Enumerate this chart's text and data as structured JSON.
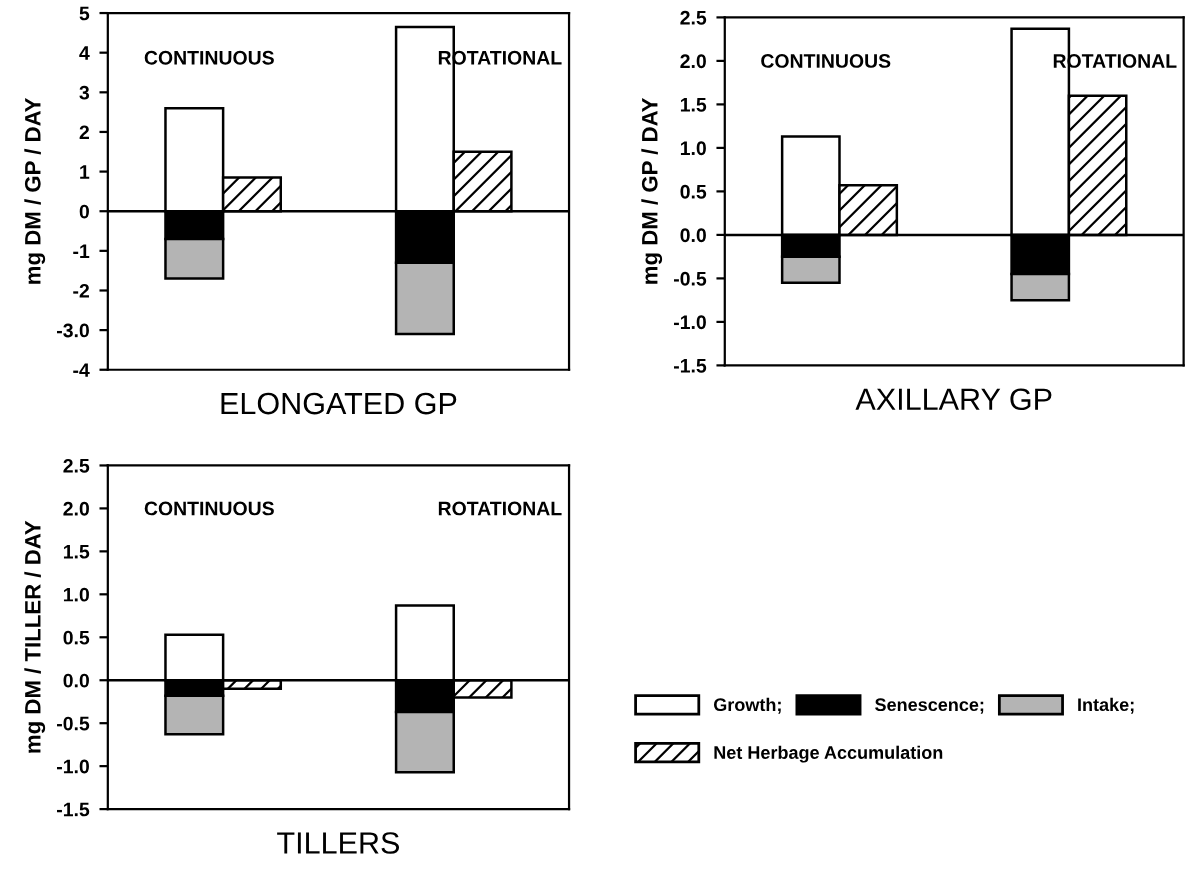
{
  "chart_data": [
    {
      "type": "bar",
      "xlabel": "ELONGATED GP",
      "ylabel": "mg DM / GP / DAY",
      "annotations": [
        "CONTINUOUS",
        "ROTATIONAL"
      ],
      "categories": [
        null,
        null,
        null,
        null,
        null,
        null,
        null,
        null
      ],
      "stacked": true,
      "tick_labels": "y",
      "grid": false,
      "ylim": [
        -4,
        5
      ],
      "yticks": [
        -4,
        {
          "value": -3,
          "label": "-3.0"
        },
        -2,
        -1,
        0,
        1,
        2,
        3,
        4,
        5
      ],
      "ref_lines": [
        {
          "axis": "y",
          "value": 0,
          "color": "#000000"
        }
      ],
      "series": [
        {
          "color": "#ffffff",
          "values": [
            null,
            2.6,
            null,
            null,
            null,
            4.65,
            null,
            null
          ]
        },
        {
          "color": "#000000",
          "values": [
            null,
            -0.7,
            null,
            null,
            null,
            -1.3,
            null,
            null
          ]
        },
        {
          "color": "#b4b4b4",
          "values": [
            null,
            -1.0,
            null,
            null,
            null,
            -1.8,
            null,
            null
          ]
        },
        {
          "color": "#000000",
          "values": [
            null,
            null,
            0.85,
            null,
            null,
            null,
            1.5,
            null
          ]
        }
      ]
    },
    {
      "type": "bar",
      "xlabel": "AXILLARY GP",
      "ylabel": "mg DM / GP / DAY",
      "annotations": [
        "CONTINUOUS",
        "ROTATIONAL"
      ],
      "categories": [
        null,
        null,
        null,
        null,
        null,
        null,
        null,
        null
      ],
      "stacked": true,
      "tick_labels": "y",
      "grid": false,
      "ylim": [
        -1.5,
        2.5
      ],
      "yticks": [
        -1.5,
        {
          "value": -1,
          "label": "-1.0"
        },
        -0.5,
        {
          "value": 0,
          "label": "0.0"
        },
        0.5,
        {
          "value": 1,
          "label": "1.0"
        },
        1.5,
        {
          "value": 2,
          "label": "2.0"
        },
        2.5
      ],
      "ref_lines": [
        {
          "axis": "y",
          "value": 0,
          "color": "#000000"
        }
      ],
      "series": [
        {
          "color": "#ffffff",
          "values": [
            null,
            1.13,
            null,
            null,
            null,
            2.37,
            null,
            null
          ]
        },
        {
          "color": "#000000",
          "values": [
            null,
            -0.25,
            null,
            null,
            null,
            -0.45,
            null,
            null
          ]
        },
        {
          "color": "#b4b4b4",
          "values": [
            null,
            -0.3,
            null,
            null,
            null,
            -0.3,
            null,
            null
          ]
        },
        {
          "color": "#000000",
          "values": [
            null,
            null,
            0.57,
            null,
            null,
            null,
            1.6,
            null
          ]
        }
      ]
    },
    {
      "type": "bar",
      "xlabel": "TILLERS",
      "ylabel": "mg DM / TILLER / DAY",
      "annotations": [
        "CONTINUOUS",
        "ROTATIONAL"
      ],
      "categories": [
        null,
        null,
        null,
        null,
        null,
        null,
        null,
        null
      ],
      "stacked": true,
      "tick_labels": "y",
      "grid": false,
      "legend": "right",
      "ylim": [
        -1.5,
        2.5
      ],
      "yticks": [
        -1.5,
        {
          "value": -1,
          "label": "-1.0"
        },
        -0.5,
        {
          "value": 0,
          "label": "0.0"
        },
        0.5,
        {
          "value": 1,
          "label": "1.0"
        },
        1.5,
        {
          "value": 2,
          "label": "2.0"
        },
        2.5
      ],
      "ref_lines": [
        {
          "axis": "y",
          "value": 0,
          "color": "#000000"
        }
      ],
      "series": [
        {
          "name": "Growth;",
          "color": "#ffffff",
          "values": [
            null,
            0.53,
            null,
            null,
            null,
            0.87,
            null,
            null
          ]
        },
        {
          "name": "Senescence;",
          "color": "#000000",
          "values": [
            null,
            -0.18,
            null,
            null,
            null,
            -0.37,
            null,
            null
          ]
        },
        {
          "name": "Intake;",
          "color": "#b4b4b4",
          "values": [
            null,
            -0.45,
            null,
            null,
            null,
            -0.7,
            null,
            null
          ]
        },
        {
          "name": "Net Herbage Accumulation",
          "color": "#000000",
          "values": [
            null,
            null,
            -0.1,
            null,
            null,
            null,
            -0.2,
            null
          ]
        }
      ]
    }
  ]
}
